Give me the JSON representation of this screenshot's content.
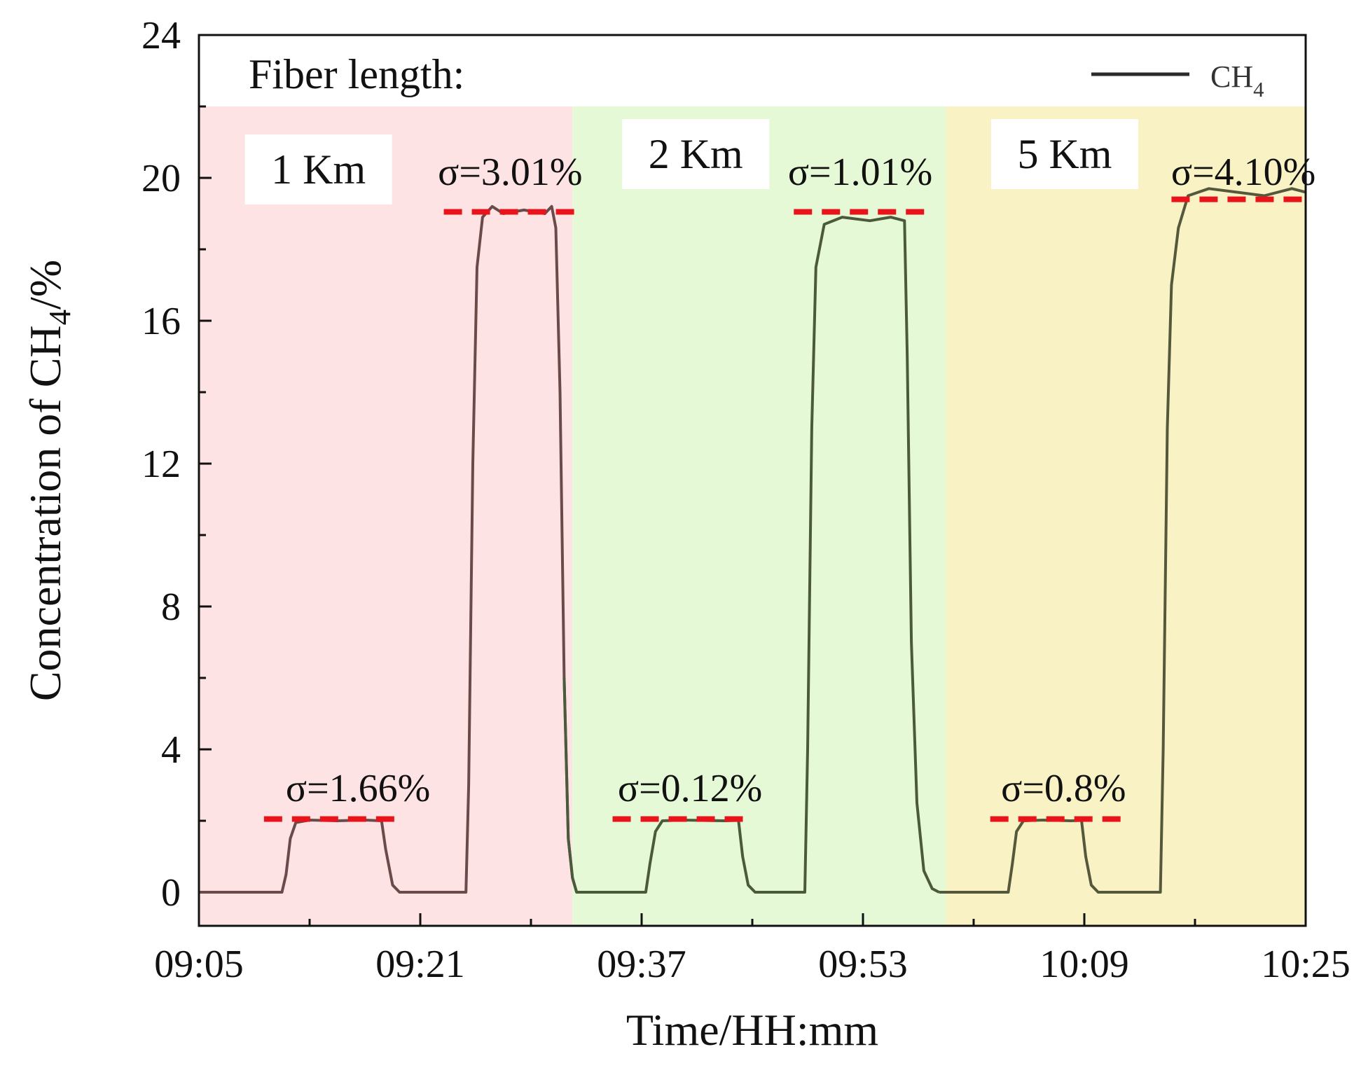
{
  "chart_data": {
    "type": "line",
    "title": "",
    "xlabel": "Time/HH:mm",
    "ylabel_main": "Concentration of CH",
    "ylabel_sub": "4",
    "ylabel_tail": "/%",
    "xlim_minutes": [
      0,
      80
    ],
    "ylim": [
      0,
      24
    ],
    "x_ticks": [
      {
        "minute": 0,
        "label": "09:05"
      },
      {
        "minute": 16,
        "label": "09:21"
      },
      {
        "minute": 32,
        "label": "09:37"
      },
      {
        "minute": 48,
        "label": "09:53"
      },
      {
        "minute": 64,
        "label": "10:09"
      },
      {
        "minute": 80,
        "label": "10:25"
      }
    ],
    "y_ticks": [
      0,
      4,
      8,
      12,
      16,
      20,
      24
    ],
    "header_text": "Fiber length:",
    "legend": {
      "label": "CH",
      "sub": "4",
      "color": "#2b2b2b"
    },
    "regions": [
      {
        "label": "1 Km",
        "x_start": 0,
        "x_end": 27,
        "y_top": 22,
        "color": "#fde3e3"
      },
      {
        "label": "2 Km",
        "x_start": 27,
        "x_end": 54,
        "y_top": 22,
        "color": "#e5f9d6"
      },
      {
        "label": "5 Km",
        "x_start": 54,
        "x_end": 80,
        "y_top": 22,
        "color": "#f8f2c5"
      }
    ],
    "series": [
      {
        "name": "CH4",
        "colors_by_region": [
          "#6b4a4a",
          "#4c5a3c",
          "#55583a"
        ],
        "points": [
          [
            0,
            0
          ],
          [
            6,
            0
          ],
          [
            6.3,
            0.5
          ],
          [
            6.6,
            1.5
          ],
          [
            7.0,
            1.95
          ],
          [
            8,
            2.02
          ],
          [
            10,
            2.0
          ],
          [
            12,
            2.02
          ],
          [
            13.2,
            2.0
          ],
          [
            13.5,
            1.2
          ],
          [
            14.0,
            0.2
          ],
          [
            14.5,
            0
          ],
          [
            19.3,
            0
          ],
          [
            19.5,
            3
          ],
          [
            19.8,
            12
          ],
          [
            20.1,
            17.5
          ],
          [
            20.5,
            18.9
          ],
          [
            21.2,
            19.2
          ],
          [
            22,
            19.0
          ],
          [
            23.5,
            19.1
          ],
          [
            25,
            19.0
          ],
          [
            25.5,
            19.2
          ],
          [
            25.8,
            18.6
          ],
          [
            26.1,
            14
          ],
          [
            26.4,
            6
          ],
          [
            26.7,
            1.5
          ],
          [
            27,
            0.4
          ],
          [
            27.3,
            0
          ],
          [
            32.3,
            0
          ],
          [
            32.6,
            0.8
          ],
          [
            33.0,
            1.7
          ],
          [
            33.5,
            2.0
          ],
          [
            35,
            2.02
          ],
          [
            38,
            2.0
          ],
          [
            39.0,
            2.01
          ],
          [
            39.3,
            1.0
          ],
          [
            39.7,
            0.2
          ],
          [
            40.2,
            0
          ],
          [
            43.8,
            0
          ],
          [
            44.0,
            4
          ],
          [
            44.3,
            13
          ],
          [
            44.6,
            17.5
          ],
          [
            45.2,
            18.7
          ],
          [
            46.5,
            18.9
          ],
          [
            48.5,
            18.8
          ],
          [
            50,
            18.9
          ],
          [
            51.0,
            18.8
          ],
          [
            51.2,
            15
          ],
          [
            51.5,
            7
          ],
          [
            51.9,
            2.5
          ],
          [
            52.4,
            0.6
          ],
          [
            53,
            0.1
          ],
          [
            53.5,
            0
          ],
          [
            58.5,
            0
          ],
          [
            58.8,
            0.8
          ],
          [
            59.1,
            1.7
          ],
          [
            59.6,
            2.0
          ],
          [
            61,
            2.02
          ],
          [
            63,
            2.0
          ],
          [
            63.8,
            2.01
          ],
          [
            64.1,
            1.0
          ],
          [
            64.5,
            0.2
          ],
          [
            65,
            0
          ],
          [
            69.5,
            0
          ],
          [
            69.7,
            4
          ],
          [
            70.0,
            13
          ],
          [
            70.3,
            17
          ],
          [
            70.8,
            18.6
          ],
          [
            71.5,
            19.5
          ],
          [
            73,
            19.7
          ],
          [
            75,
            19.6
          ],
          [
            77,
            19.5
          ],
          [
            79,
            19.7
          ],
          [
            80,
            19.6
          ]
        ]
      }
    ],
    "annotations": [
      {
        "text": "σ=1.66%",
        "tx": 11.5,
        "ty": 2.55,
        "line_x": [
          4.7,
          14.5
        ],
        "line_y": 2.05
      },
      {
        "text": "σ=3.01%",
        "tx": 22.5,
        "ty": 19.8,
        "line_x": [
          17.7,
          27.5
        ],
        "line_y": 19.05
      },
      {
        "text": "σ=0.12%",
        "tx": 35.5,
        "ty": 2.55,
        "line_x": [
          29.9,
          39.7
        ],
        "line_y": 2.05
      },
      {
        "text": "σ=1.01%",
        "tx": 47.8,
        "ty": 19.8,
        "line_x": [
          43,
          52.8
        ],
        "line_y": 19.05
      },
      {
        "text": "σ=0.8%",
        "tx": 62.5,
        "ty": 2.55,
        "line_x": [
          57.2,
          67
        ],
        "line_y": 2.05
      },
      {
        "text": "σ=4.10%",
        "tx": 75.5,
        "ty": 19.8,
        "line_x": [
          70.3,
          80
        ],
        "line_y": 19.4
      }
    ],
    "annotation_line_color": "#e8141a"
  }
}
